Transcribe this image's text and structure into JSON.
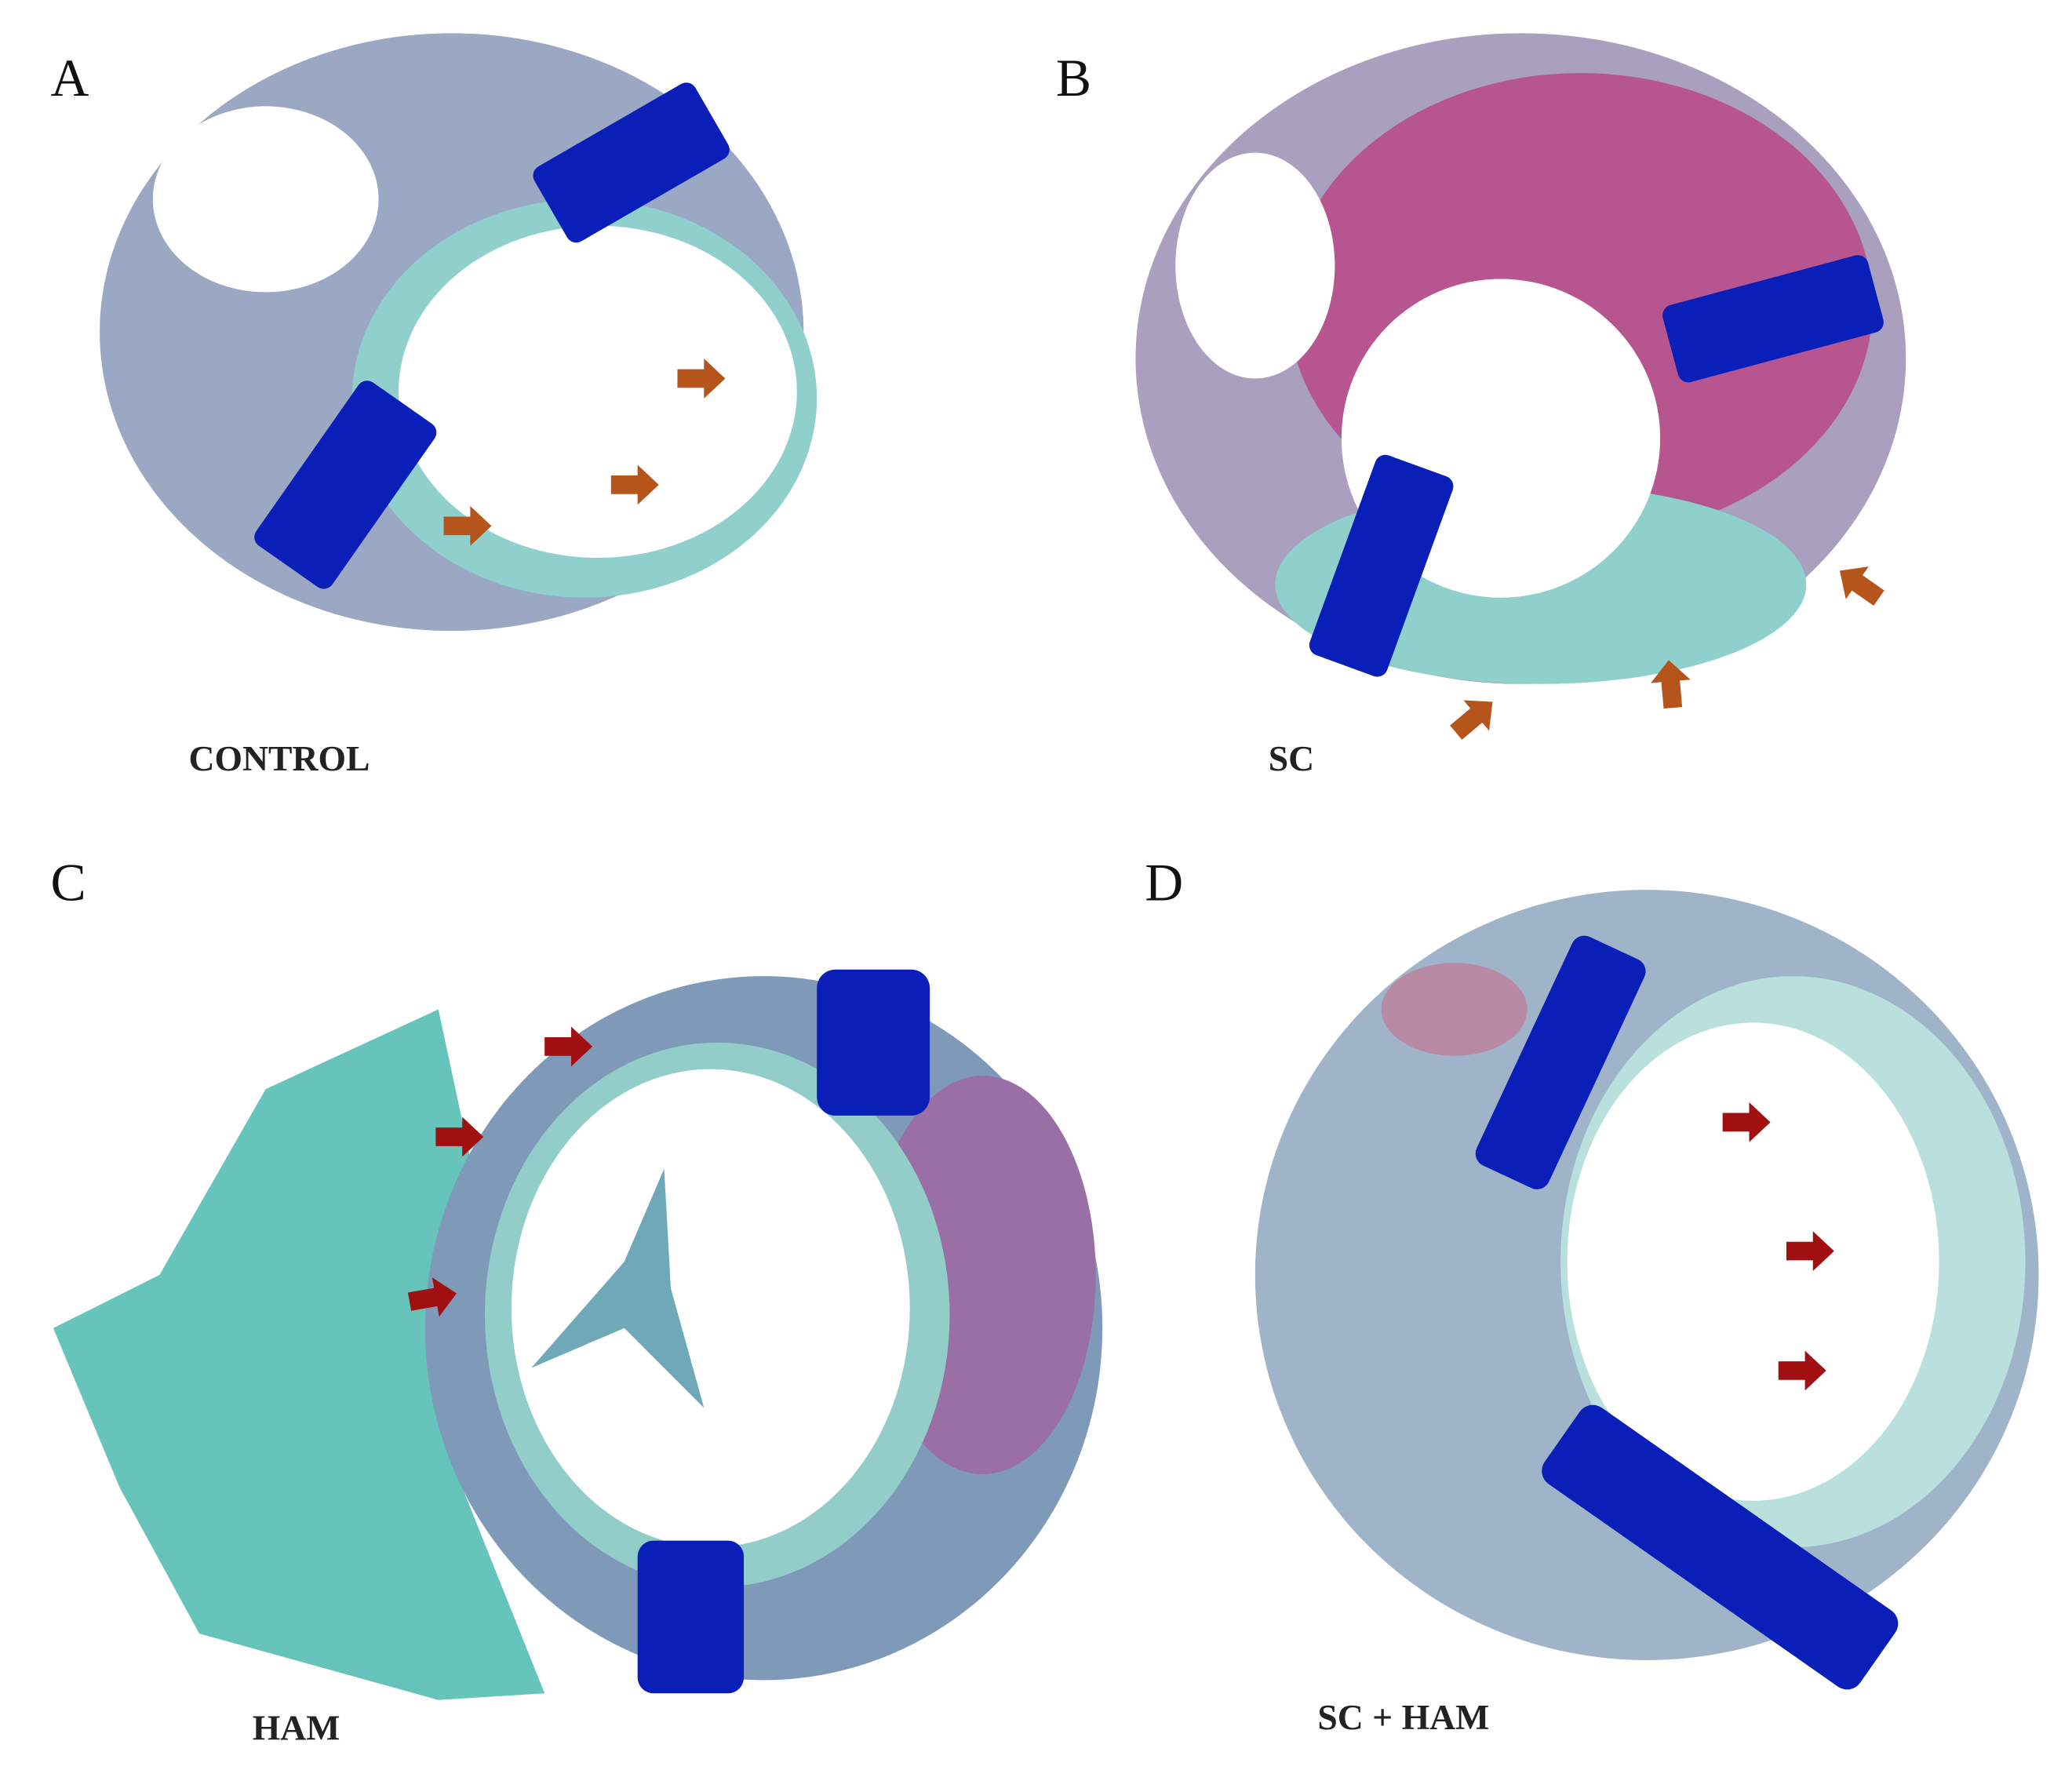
{
  "panels": [
    {
      "letter": "A",
      "label": "CONTROL"
    },
    {
      "letter": "B",
      "label": "SC"
    },
    {
      "letter": "C",
      "label": "HAM"
    },
    {
      "letter": "D",
      "label": "SC + HAM"
    }
  ]
}
